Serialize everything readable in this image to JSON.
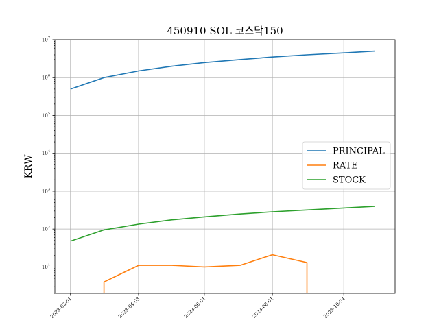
{
  "chart_data": {
    "type": "line",
    "title": "450910 SOL 코스닥150",
    "xlabel": "",
    "ylabel": "KRW",
    "y_scale": "log",
    "ylim": [
      2,
      10000000
    ],
    "y_ticks": [
      {
        "value": 10,
        "base": "10",
        "exp": "1"
      },
      {
        "value": 100,
        "base": "10",
        "exp": "2"
      },
      {
        "value": 1000,
        "base": "10",
        "exp": "3"
      },
      {
        "value": 10000,
        "base": "10",
        "exp": "4"
      },
      {
        "value": 100000,
        "base": "10",
        "exp": "5"
      },
      {
        "value": 1000000,
        "base": "10",
        "exp": "6"
      },
      {
        "value": 10000000,
        "base": "10",
        "exp": "7"
      }
    ],
    "x_range": [
      "2023-01-18",
      "2023-11-19"
    ],
    "x_ticks": [
      "2023-02-01",
      "2023-04-03",
      "2023-06-01",
      "2023-08-01",
      "2023-10-04"
    ],
    "grid": true,
    "legend_position": "center-right",
    "series": [
      {
        "name": "PRINCIPAL",
        "color": "#1f77b4",
        "points": [
          [
            "2023-02-01",
            500000
          ],
          [
            "2023-03-03",
            1000000
          ],
          [
            "2023-04-03",
            1500000
          ],
          [
            "2023-05-03",
            2000000
          ],
          [
            "2023-06-01",
            2500000
          ],
          [
            "2023-07-03",
            3000000
          ],
          [
            "2023-08-01",
            3500000
          ],
          [
            "2023-09-01",
            4000000
          ],
          [
            "2023-10-04",
            4500000
          ],
          [
            "2023-11-01",
            5000000
          ]
        ]
      },
      {
        "name": "RATE",
        "color": "#ff7f0e",
        "points": [
          [
            "2023-03-03",
            1.5
          ],
          [
            "2023-03-03",
            4
          ],
          [
            "2023-04-03",
            11
          ],
          [
            "2023-05-03",
            11
          ],
          [
            "2023-06-01",
            10
          ],
          [
            "2023-07-03",
            11
          ],
          [
            "2023-08-01",
            21
          ],
          [
            "2023-09-01",
            13
          ],
          [
            "2023-09-01",
            1.5
          ]
        ]
      },
      {
        "name": "STOCK",
        "color": "#2ca02c",
        "points": [
          [
            "2023-02-01",
            48
          ],
          [
            "2023-03-03",
            95
          ],
          [
            "2023-04-03",
            135
          ],
          [
            "2023-05-03",
            175
          ],
          [
            "2023-06-01",
            210
          ],
          [
            "2023-07-03",
            250
          ],
          [
            "2023-08-01",
            285
          ],
          [
            "2023-09-01",
            320
          ],
          [
            "2023-10-04",
            360
          ],
          [
            "2023-11-01",
            400
          ]
        ]
      }
    ]
  }
}
